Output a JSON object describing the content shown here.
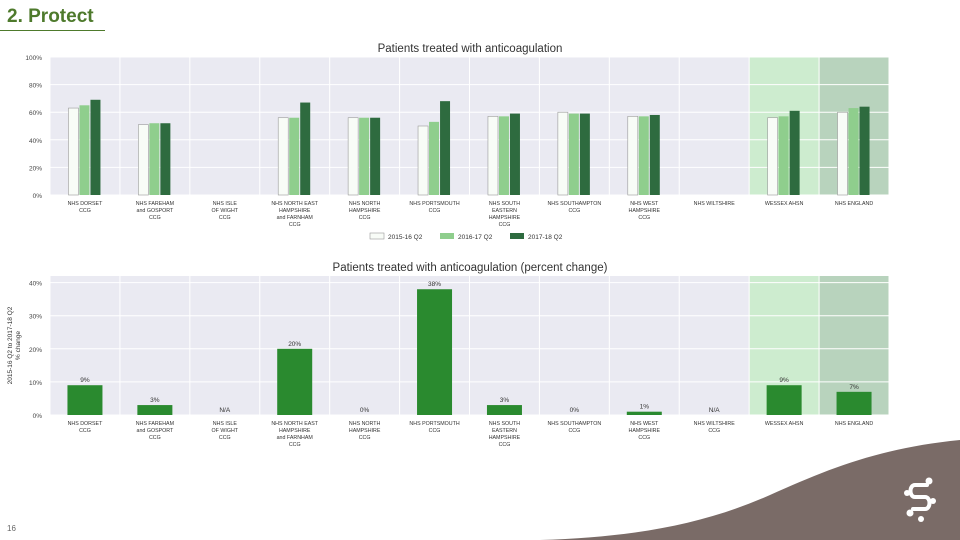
{
  "slide": {
    "title": "2. Protect",
    "page_number": "16"
  },
  "colors": {
    "plot_bg": "#eaeaf2",
    "grid": "#ffffff",
    "highlight_wessex": "#cdeccf",
    "highlight_england": "#b8d3bd",
    "series": [
      "#f8fcf7",
      "#8fce8d",
      "#2e6b3f"
    ],
    "change_bar": "#2a8a2f",
    "footer_shape": "#7a6b67",
    "title_text": "#4e7a2c"
  },
  "chart_data": [
    {
      "type": "bar",
      "title": "Patients treated with anticoagulation",
      "categories": [
        [
          "NHS DORSET",
          "CCG"
        ],
        [
          "NHS FAREHAM",
          "and GOSPORT",
          "CCG"
        ],
        [
          "NHS ISLE",
          "OF WIGHT",
          "CCG"
        ],
        [
          "NHS NORTH EAST",
          "HAMPSHIRE",
          "and FARNHAM",
          "CCG"
        ],
        [
          "NHS NORTH",
          "HAMPSHIRE",
          "CCG"
        ],
        [
          "NHS PORTSMOUTH",
          "CCG"
        ],
        [
          "NHS SOUTH",
          "EASTERN",
          "HAMPSHIRE",
          "CCG"
        ],
        [
          "NHS SOUTHAMPTON",
          "CCG"
        ],
        [
          "NHS WEST",
          "HAMPSHIRE",
          "CCG"
        ],
        [
          "NHS WILTSHIRE"
        ],
        [
          "WESSEX AHSN"
        ],
        [
          "NHS ENGLAND"
        ]
      ],
      "series": [
        {
          "name": "2015-16 Q2",
          "values": [
            63,
            51,
            null,
            56,
            56,
            50,
            57,
            60,
            57,
            null,
            56,
            60
          ]
        },
        {
          "name": "2016-17 Q2",
          "values": [
            65,
            52,
            null,
            56,
            56,
            53,
            57,
            59,
            57,
            null,
            57,
            63
          ]
        },
        {
          "name": "2017-18 Q2",
          "values": [
            69,
            52,
            null,
            67,
            56,
            68,
            59,
            59,
            58,
            null,
            61,
            64
          ]
        }
      ],
      "ylim": [
        0,
        100
      ],
      "yticks": [
        "0%",
        "20%",
        "40%",
        "60%",
        "80%",
        "100%"
      ],
      "highlighted": [
        "WESSEX AHSN",
        "NHS ENGLAND"
      ],
      "legend": "bottom-center",
      "grid": true
    },
    {
      "type": "bar",
      "title": "Patients treated with anticoagulation (percent change)",
      "ylabel": [
        "2015-16 Q2 to 2017-18 Q2",
        "% change"
      ],
      "categories": [
        [
          "NHS DORSET",
          "CCG"
        ],
        [
          "NHS FAREHAM",
          "and GOSPORT",
          "CCG"
        ],
        [
          "NHS ISLE",
          "OF WIGHT",
          "CCG"
        ],
        [
          "NHS NORTH EAST",
          "HAMPSHIRE",
          "and FARNHAM",
          "CCG"
        ],
        [
          "NHS NORTH",
          "HAMPSHIRE",
          "CCG"
        ],
        [
          "NHS PORTSMOUTH",
          "CCG"
        ],
        [
          "NHS SOUTH",
          "EASTERN",
          "HAMPSHIRE",
          "CCG"
        ],
        [
          "NHS SOUTHAMPTON",
          "CCG"
        ],
        [
          "NHS WEST",
          "HAMPSHIRE",
          "CCG"
        ],
        [
          "NHS WILTSHIRE",
          "CCG"
        ],
        [
          "WESSEX AHSN"
        ],
        [
          "NHS ENGLAND"
        ]
      ],
      "values": [
        9,
        3,
        null,
        20,
        0,
        38,
        3,
        0,
        1,
        null,
        9,
        7
      ],
      "labels": [
        "9%",
        "3%",
        "N/A",
        "20%",
        "0%",
        "38%",
        "3%",
        "0%",
        "1%",
        "N/A",
        "9%",
        "7%"
      ],
      "ylim": [
        0,
        42
      ],
      "yticks": [
        "0%",
        "10%",
        "20%",
        "30%",
        "40%"
      ],
      "highlighted": [
        "WESSEX AHSN",
        "NHS ENGLAND"
      ],
      "grid": true
    }
  ]
}
